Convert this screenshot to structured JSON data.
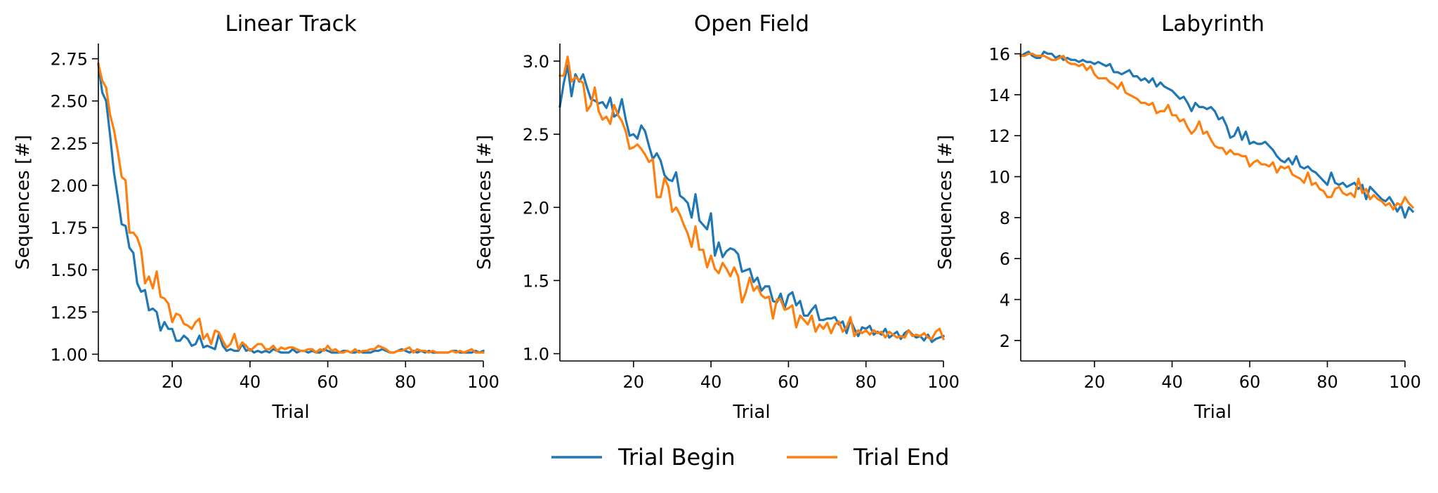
{
  "colors": {
    "trial_begin": "#1f77b4",
    "trial_end": "#ff7f0e",
    "axis": "#000000"
  },
  "legend": {
    "placement": "bottom-center",
    "entries": [
      {
        "name": "Trial Begin",
        "color": "#1f77b4"
      },
      {
        "name": "Trial End",
        "color": "#ff7f0e"
      }
    ]
  },
  "chart_data": [
    {
      "type": "line",
      "title": "Linear Track",
      "xlabel": "Trial",
      "ylabel": "Sequences [#]",
      "xlim": [
        1,
        100
      ],
      "ylim": [
        0.96,
        2.84
      ],
      "xticks": [
        20,
        40,
        60,
        80,
        100
      ],
      "xtick_labels": [
        "20",
        "40",
        "60",
        "80",
        "100"
      ],
      "yticks": [
        1.0,
        1.25,
        1.5,
        1.75,
        2.0,
        2.25,
        2.5,
        2.75
      ],
      "ytick_labels": [
        "1.00",
        "1.25",
        "1.50",
        "1.75",
        "2.00",
        "2.25",
        "2.50",
        "2.75"
      ],
      "grid": false,
      "series": [
        {
          "name": "Trial Begin",
          "color": "#1f77b4",
          "values": [
            2.72,
            2.55,
            2.5,
            2.3,
            2.08,
            1.93,
            1.77,
            1.76,
            1.63,
            1.6,
            1.42,
            1.37,
            1.38,
            1.26,
            1.27,
            1.25,
            1.14,
            1.19,
            1.15,
            1.15,
            1.08,
            1.08,
            1.11,
            1.09,
            1.05,
            1.06,
            1.11,
            1.04,
            1.05,
            1.04,
            1.03,
            1.12,
            1.05,
            1.02,
            1.03,
            1.02,
            1.02,
            1.06,
            1.02,
            1.03,
            1.01,
            1.02,
            1.01,
            1.02,
            1.01,
            1.03,
            1.02,
            1.01,
            1.01,
            1.01,
            1.03,
            1.01,
            1.02,
            1.02,
            1.01,
            1.02,
            1.01,
            1.01,
            1.03,
            1.02,
            1.01,
            1.01,
            1.01,
            1.02,
            1.02,
            1.01,
            1.01,
            1.02,
            1.01,
            1.01,
            1.01,
            1.02,
            1.02,
            1.03,
            1.02,
            1.01,
            1.01,
            1.02,
            1.03,
            1.02,
            1.01,
            1.02,
            1.01,
            1.02,
            1.01,
            1.02,
            1.01,
            1.01,
            1.01,
            1.01,
            1.01,
            1.02,
            1.02,
            1.01,
            1.01,
            1.01,
            1.01,
            1.02,
            1.01,
            1.02
          ]
        },
        {
          "name": "Trial End",
          "color": "#ff7f0e",
          "values": [
            2.72,
            2.62,
            2.58,
            2.42,
            2.33,
            2.2,
            2.05,
            2.03,
            1.72,
            1.72,
            1.69,
            1.62,
            1.42,
            1.46,
            1.39,
            1.49,
            1.34,
            1.33,
            1.3,
            1.19,
            1.24,
            1.23,
            1.18,
            1.17,
            1.15,
            1.19,
            1.21,
            1.09,
            1.12,
            1.06,
            1.14,
            1.13,
            1.08,
            1.04,
            1.06,
            1.12,
            1.03,
            1.07,
            1.05,
            1.02,
            1.04,
            1.06,
            1.06,
            1.03,
            1.03,
            1.05,
            1.02,
            1.04,
            1.03,
            1.04,
            1.04,
            1.03,
            1.02,
            1.02,
            1.03,
            1.03,
            1.01,
            1.03,
            1.02,
            1.05,
            1.02,
            1.03,
            1.01,
            1.01,
            1.02,
            1.01,
            1.03,
            1.01,
            1.02,
            1.02,
            1.03,
            1.03,
            1.05,
            1.04,
            1.03,
            1.01,
            1.01,
            1.02,
            1.02,
            1.03,
            1.04,
            1.01,
            1.03,
            1.02,
            1.02,
            1.01,
            1.02,
            1.01,
            1.01,
            1.01,
            1.01,
            1.02,
            1.01,
            1.02,
            1.01,
            1.02,
            1.03,
            1.01,
            1.01,
            1.01
          ]
        }
      ]
    },
    {
      "type": "line",
      "title": "Open Field",
      "xlabel": "Trial",
      "ylabel": "Sequences [#]",
      "xlim": [
        1,
        100
      ],
      "ylim": [
        0.95,
        3.12
      ],
      "xticks": [
        20,
        40,
        60,
        80,
        100
      ],
      "xtick_labels": [
        "20",
        "40",
        "60",
        "80",
        "100"
      ],
      "yticks": [
        1.0,
        1.5,
        2.0,
        2.5,
        3.0
      ],
      "ytick_labels": [
        "1.0",
        "1.5",
        "2.0",
        "2.5",
        "3.0"
      ],
      "grid": false,
      "series": [
        {
          "name": "Trial Begin",
          "color": "#1f77b4",
          "values": [
            2.69,
            2.85,
            2.97,
            2.76,
            2.91,
            2.86,
            2.91,
            2.82,
            2.74,
            2.73,
            2.71,
            2.72,
            2.68,
            2.75,
            2.62,
            2.64,
            2.74,
            2.6,
            2.49,
            2.5,
            2.47,
            2.56,
            2.52,
            2.42,
            2.33,
            2.37,
            2.32,
            2.22,
            2.19,
            2.18,
            2.24,
            2.08,
            2.06,
            2.03,
            1.93,
            2.09,
            1.91,
            1.88,
            1.85,
            1.96,
            1.67,
            1.76,
            1.66,
            1.7,
            1.72,
            1.71,
            1.68,
            1.56,
            1.57,
            1.58,
            1.49,
            1.52,
            1.43,
            1.46,
            1.46,
            1.36,
            1.35,
            1.41,
            1.31,
            1.4,
            1.42,
            1.33,
            1.36,
            1.26,
            1.26,
            1.3,
            1.33,
            1.23,
            1.23,
            1.24,
            1.24,
            1.25,
            1.2,
            1.22,
            1.14,
            1.23,
            1.17,
            1.12,
            1.18,
            1.17,
            1.19,
            1.13,
            1.15,
            1.13,
            1.17,
            1.11,
            1.13,
            1.15,
            1.1,
            1.14,
            1.16,
            1.13,
            1.11,
            1.12,
            1.09,
            1.13,
            1.08,
            1.1,
            1.11,
            1.12
          ]
        },
        {
          "name": "Trial End",
          "color": "#ff7f0e",
          "values": [
            2.9,
            2.9,
            3.03,
            2.86,
            2.89,
            2.87,
            2.85,
            2.66,
            2.7,
            2.82,
            2.66,
            2.6,
            2.62,
            2.57,
            2.7,
            2.63,
            2.59,
            2.52,
            2.4,
            2.41,
            2.43,
            2.4,
            2.36,
            2.31,
            2.33,
            2.07,
            2.07,
            2.2,
            2.14,
            1.97,
            2.0,
            1.95,
            1.88,
            1.82,
            1.73,
            1.87,
            1.71,
            1.71,
            1.59,
            1.67,
            1.58,
            1.55,
            1.62,
            1.58,
            1.53,
            1.59,
            1.53,
            1.35,
            1.42,
            1.52,
            1.43,
            1.46,
            1.4,
            1.38,
            1.39,
            1.24,
            1.37,
            1.37,
            1.3,
            1.31,
            1.33,
            1.18,
            1.26,
            1.23,
            1.2,
            1.26,
            1.15,
            1.2,
            1.17,
            1.21,
            1.14,
            1.2,
            1.22,
            1.15,
            1.18,
            1.25,
            1.12,
            1.16,
            1.14,
            1.16,
            1.13,
            1.16,
            1.14,
            1.15,
            1.11,
            1.15,
            1.13,
            1.11,
            1.12,
            1.11,
            1.16,
            1.12,
            1.13,
            1.12,
            1.14,
            1.11,
            1.1,
            1.15,
            1.17,
            1.1
          ]
        }
      ]
    },
    {
      "type": "line",
      "title": "Labyrinth",
      "xlabel": "Trial",
      "ylabel": "Sequences [#]",
      "xlim": [
        1,
        100
      ],
      "ylim": [
        1.0,
        16.5
      ],
      "xticks": [
        20,
        40,
        60,
        80,
        100
      ],
      "xtick_labels": [
        "20",
        "40",
        "60",
        "80",
        "100"
      ],
      "yticks": [
        2,
        4,
        6,
        8,
        10,
        12,
        14,
        16
      ],
      "ytick_labels": [
        "2",
        "4",
        "6",
        "8",
        "10",
        "12",
        "14",
        "16"
      ],
      "grid": false,
      "series": [
        {
          "name": "Trial Begin",
          "color": "#1f77b4",
          "values": [
            15.9,
            16.0,
            16.1,
            15.9,
            15.8,
            15.8,
            16.1,
            16.0,
            16.0,
            15.8,
            15.9,
            15.7,
            15.8,
            15.7,
            15.7,
            15.6,
            15.7,
            15.6,
            15.6,
            15.5,
            15.6,
            15.5,
            15.4,
            15.5,
            15.1,
            15.1,
            15.0,
            15.1,
            15.2,
            14.9,
            14.9,
            14.7,
            14.8,
            14.6,
            14.8,
            14.4,
            14.6,
            14.4,
            14.3,
            14.2,
            14.0,
            13.8,
            13.9,
            13.6,
            13.2,
            13.6,
            13.4,
            13.4,
            13.3,
            13.4,
            13.2,
            12.8,
            12.9,
            12.5,
            11.9,
            12.0,
            12.4,
            11.8,
            12.2,
            11.6,
            11.7,
            11.6,
            11.6,
            11.7,
            11.5,
            11.3,
            11.0,
            10.8,
            10.7,
            10.9,
            10.6,
            11.0,
            10.5,
            10.4,
            10.5,
            10.3,
            10.2,
            10.0,
            9.8,
            9.6,
            10.2,
            9.7,
            9.6,
            9.7,
            9.5,
            9.6,
            9.7,
            9.4,
            9.6,
            8.9,
            9.5,
            9.3,
            9.1,
            8.9,
            8.8,
            9.0,
            8.7,
            8.3,
            8.6,
            8.0,
            8.5,
            8.3
          ]
        },
        {
          "name": "Trial End",
          "color": "#ff7f0e",
          "values": [
            15.9,
            15.9,
            16.0,
            16.0,
            15.9,
            15.9,
            15.9,
            15.8,
            15.7,
            15.7,
            15.8,
            15.9,
            15.6,
            15.5,
            15.5,
            15.4,
            15.5,
            15.2,
            15.4,
            15.0,
            14.8,
            14.8,
            14.8,
            14.6,
            14.5,
            14.3,
            14.6,
            14.1,
            14.0,
            13.9,
            13.8,
            13.6,
            13.6,
            13.5,
            13.6,
            13.1,
            13.2,
            13.2,
            13.5,
            13.0,
            13.0,
            12.7,
            12.8,
            12.4,
            12.1,
            12.3,
            12.7,
            12.1,
            12.2,
            11.8,
            11.5,
            11.4,
            11.4,
            11.1,
            11.3,
            11.1,
            11.1,
            11.0,
            11.0,
            10.5,
            10.7,
            10.8,
            10.6,
            10.6,
            10.5,
            10.7,
            10.2,
            10.5,
            10.4,
            10.5,
            10.1,
            10.0,
            9.9,
            9.7,
            10.2,
            9.6,
            9.7,
            9.4,
            9.3,
            9.0,
            9.0,
            9.4,
            9.5,
            9.2,
            9.1,
            9.2,
            9.0,
            9.9,
            9.2,
            9.4,
            8.9,
            9.1,
            8.9,
            8.8,
            8.6,
            8.7,
            8.4,
            8.7,
            8.6,
            9.0,
            8.7,
            8.5
          ]
        }
      ]
    }
  ]
}
